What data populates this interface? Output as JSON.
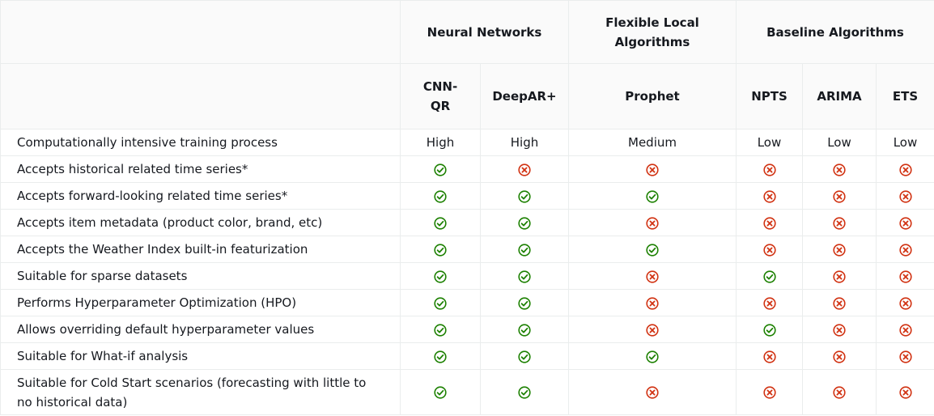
{
  "header": {
    "groups": [
      {
        "label": "Neural Networks",
        "span": 2
      },
      {
        "label": "Flexible Local Algorithms",
        "span": 1
      },
      {
        "label": "Baseline Algorithms",
        "span": 3
      }
    ],
    "columns": [
      "CNN-QR",
      "DeepAR+",
      "Prophet",
      "NPTS",
      "ARIMA",
      "ETS"
    ]
  },
  "colors": {
    "yes": "#1d8102",
    "no": "#d13212",
    "border": "#eaeded",
    "header_bg": "#fafafa"
  },
  "rows": [
    {
      "label": "Computationally intensive training process",
      "cells": [
        "High",
        "High",
        "Medium",
        "Low",
        "Low",
        "Low"
      ]
    },
    {
      "label": "Accepts historical related time series*",
      "cells": [
        "yes",
        "no",
        "no",
        "no",
        "no",
        "no"
      ]
    },
    {
      "label": "Accepts forward-looking related time series*",
      "cells": [
        "yes",
        "yes",
        "yes",
        "no",
        "no",
        "no"
      ]
    },
    {
      "label": "Accepts item metadata (product color, brand, etc)",
      "cells": [
        "yes",
        "yes",
        "no",
        "no",
        "no",
        "no"
      ]
    },
    {
      "label": "Accepts the Weather Index built-in featurization",
      "cells": [
        "yes",
        "yes",
        "yes",
        "no",
        "no",
        "no"
      ]
    },
    {
      "label": "Suitable for sparse datasets",
      "cells": [
        "yes",
        "yes",
        "no",
        "yes",
        "no",
        "no"
      ]
    },
    {
      "label": "Performs Hyperparameter Optimization (HPO)",
      "cells": [
        "yes",
        "yes",
        "no",
        "no",
        "no",
        "no"
      ]
    },
    {
      "label": "Allows overriding default hyperparameter values",
      "cells": [
        "yes",
        "yes",
        "no",
        "yes",
        "no",
        "no"
      ]
    },
    {
      "label": "Suitable for What-if analysis",
      "cells": [
        "yes",
        "yes",
        "yes",
        "no",
        "no",
        "no"
      ]
    },
    {
      "label": "Suitable for Cold Start scenarios (forecasting with little to no historical data)",
      "cells": [
        "yes",
        "yes",
        "no",
        "no",
        "no",
        "no"
      ]
    }
  ]
}
